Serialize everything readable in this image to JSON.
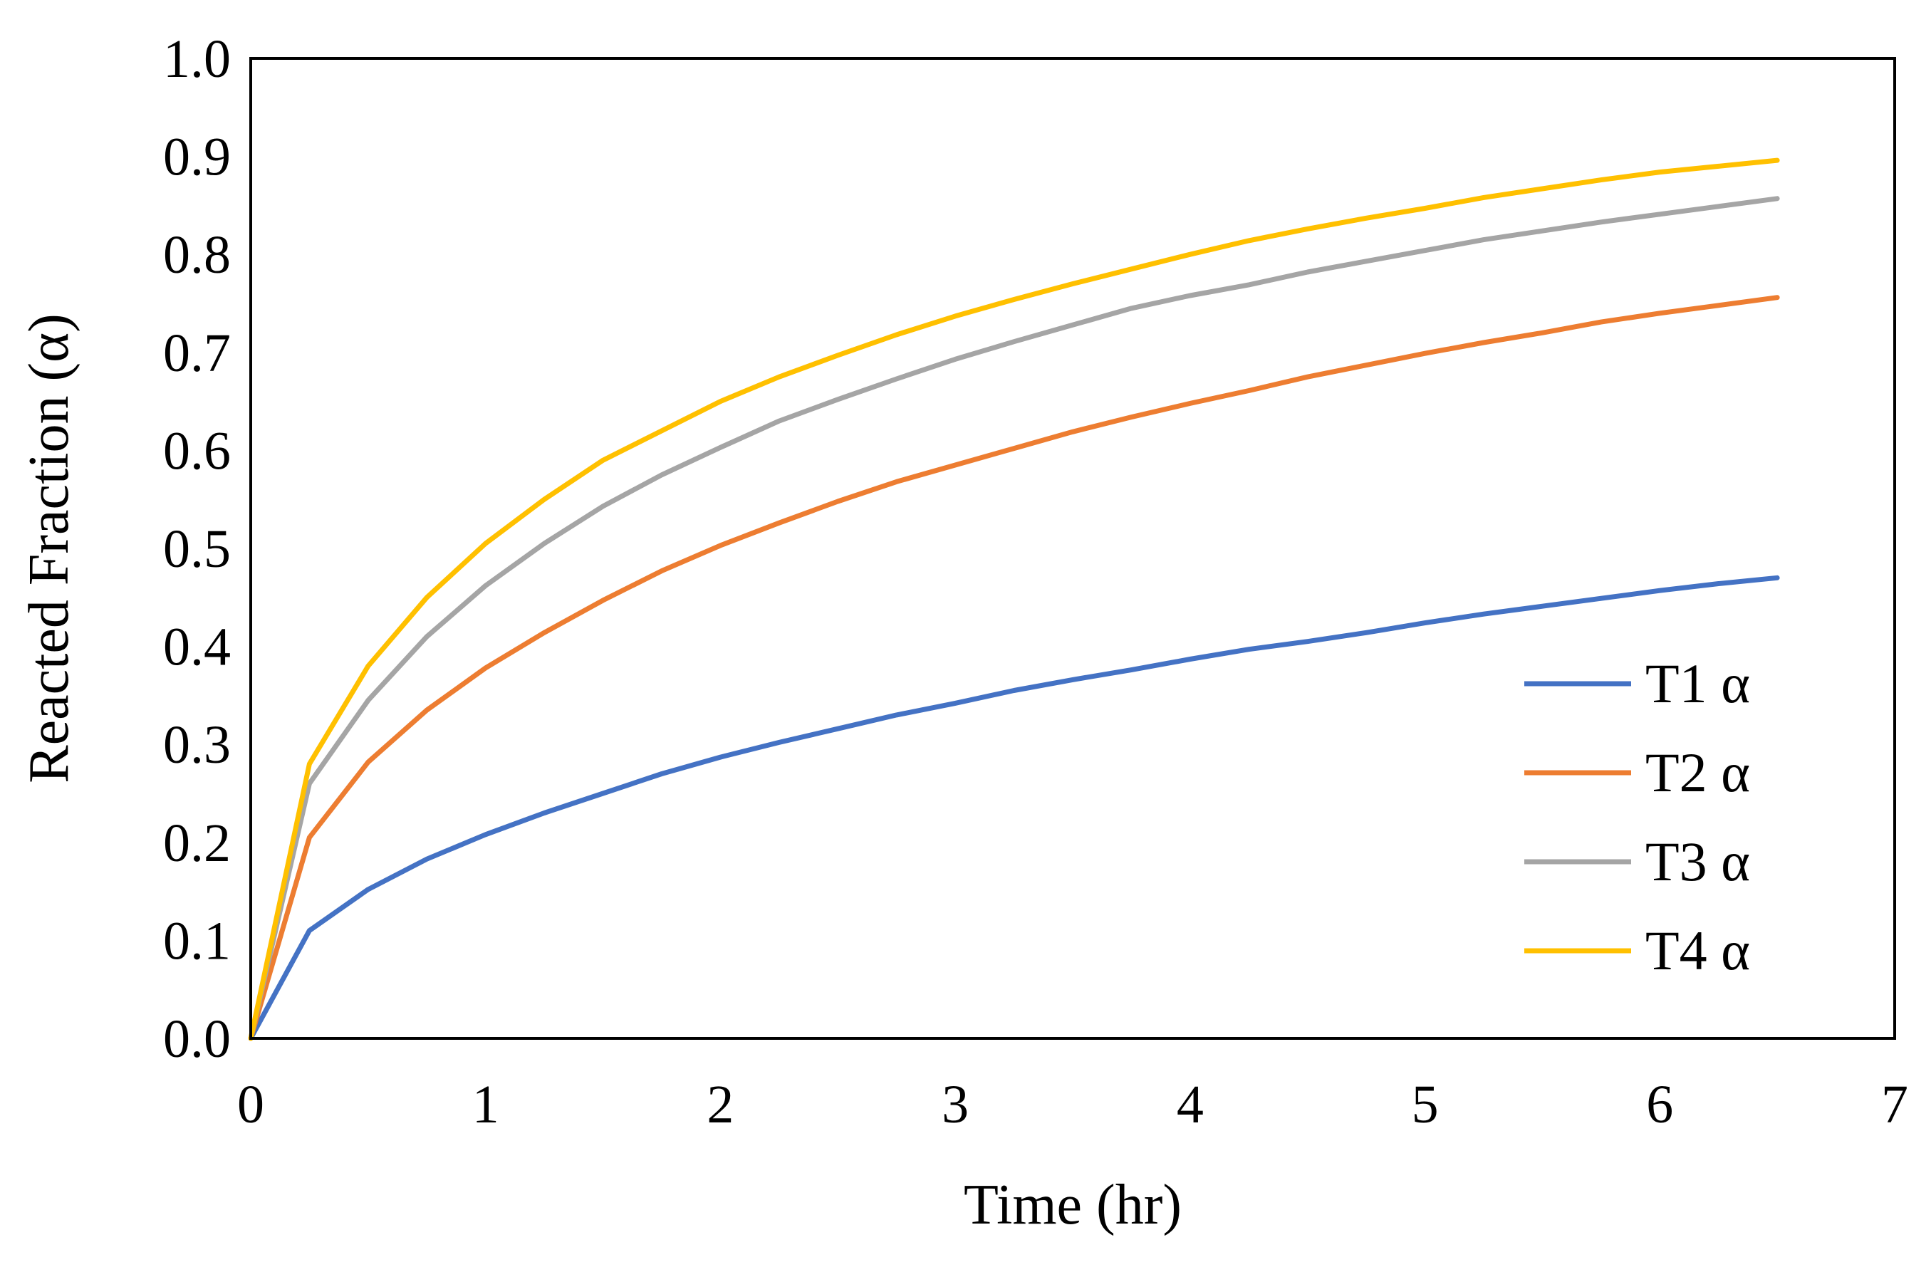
{
  "chart_data": {
    "type": "line",
    "title": "",
    "xlabel": "Time (hr)",
    "ylabel": "Reacted Fraction (α)",
    "xlim": [
      0,
      7
    ],
    "ylim": [
      0,
      1
    ],
    "x_ticks": [
      "0",
      "1",
      "2",
      "3",
      "4",
      "5",
      "6",
      "7"
    ],
    "y_ticks": [
      "0.0",
      "0.1",
      "0.2",
      "0.3",
      "0.4",
      "0.5",
      "0.6",
      "0.7",
      "0.8",
      "0.9",
      "1.0"
    ],
    "grid": false,
    "legend_position": "bottom-right",
    "x": [
      0,
      0.25,
      0.5,
      0.75,
      1,
      1.25,
      1.5,
      1.75,
      2,
      2.25,
      2.5,
      2.75,
      3,
      3.25,
      3.5,
      3.75,
      4,
      4.25,
      4.5,
      4.75,
      5,
      5.25,
      5.5,
      5.75,
      6,
      6.25,
      6.5
    ],
    "series": [
      {
        "name": "T1 α",
        "color": "#4472C4",
        "values": [
          0,
          0.11,
          0.152,
          0.183,
          0.208,
          0.23,
          0.25,
          0.27,
          0.287,
          0.302,
          0.316,
          0.33,
          0.342,
          0.355,
          0.366,
          0.376,
          0.387,
          0.397,
          0.405,
          0.414,
          0.424,
          0.433,
          0.441,
          0.449,
          0.457,
          0.464,
          0.47
        ]
      },
      {
        "name": "T2 α",
        "color": "#ED7D31",
        "values": [
          0,
          0.205,
          0.282,
          0.335,
          0.378,
          0.414,
          0.447,
          0.477,
          0.503,
          0.526,
          0.548,
          0.568,
          0.585,
          0.602,
          0.619,
          0.634,
          0.648,
          0.661,
          0.675,
          0.687,
          0.699,
          0.71,
          0.72,
          0.731,
          0.74,
          0.748,
          0.756
        ]
      },
      {
        "name": "T3 α",
        "color": "#A5A5A5",
        "values": [
          0,
          0.26,
          0.345,
          0.41,
          0.462,
          0.505,
          0.543,
          0.575,
          0.603,
          0.63,
          0.652,
          0.673,
          0.693,
          0.711,
          0.728,
          0.745,
          0.758,
          0.769,
          0.782,
          0.793,
          0.804,
          0.815,
          0.824,
          0.833,
          0.841,
          0.849,
          0.857
        ]
      },
      {
        "name": "T4 α",
        "color": "#FFC000",
        "values": [
          0,
          0.28,
          0.38,
          0.45,
          0.505,
          0.55,
          0.59,
          0.62,
          0.65,
          0.675,
          0.697,
          0.718,
          0.737,
          0.754,
          0.77,
          0.785,
          0.8,
          0.814,
          0.826,
          0.837,
          0.847,
          0.858,
          0.867,
          0.876,
          0.884,
          0.89,
          0.896
        ]
      }
    ]
  }
}
